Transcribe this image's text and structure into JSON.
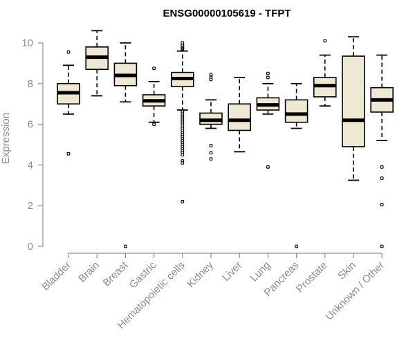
{
  "chart_data": {
    "type": "box",
    "title": "ENSG00000105619 - TFPT",
    "xlabel": "",
    "ylabel": "Expression",
    "ylim": [
      0,
      10.6
    ],
    "yticks": [
      0,
      2,
      4,
      6,
      8,
      10
    ],
    "categories": [
      "Bladder",
      "Brain",
      "Breast",
      "Gastric",
      "Hematopoietic cells",
      "Kidney",
      "Liver",
      "Lung",
      "Pancreas",
      "Prostate",
      "Skin",
      "Unknown / Other"
    ],
    "boxes": [
      {
        "category": "Bladder",
        "whisker_low": 6.5,
        "q1": 7.0,
        "median": 7.55,
        "q3": 8.0,
        "whisker_high": 8.9,
        "outliers": [
          9.55,
          4.55
        ]
      },
      {
        "category": "Brain",
        "whisker_low": 7.4,
        "q1": 8.7,
        "median": 9.3,
        "q3": 9.8,
        "whisker_high": 10.6,
        "outliers": []
      },
      {
        "category": "Breast",
        "whisker_low": 7.1,
        "q1": 7.9,
        "median": 8.4,
        "q3": 9.0,
        "whisker_high": 10.0,
        "outliers": [
          0.0
        ]
      },
      {
        "category": "Gastric",
        "whisker_low": 6.1,
        "q1": 6.9,
        "median": 7.15,
        "q3": 7.45,
        "whisker_high": 8.1,
        "outliers": [
          8.75,
          6.0
        ]
      },
      {
        "category": "Hematopoietic cells",
        "whisker_low": 6.7,
        "q1": 7.85,
        "median": 8.25,
        "q3": 8.55,
        "whisker_high": 9.6,
        "outliers": [
          9.7,
          9.75,
          9.8,
          9.85,
          9.9,
          10.0,
          6.65,
          6.6,
          6.5,
          6.4,
          6.3,
          6.2,
          6.1,
          6.0,
          5.9,
          5.8,
          5.7,
          5.6,
          5.5,
          5.4,
          5.3,
          5.2,
          5.1,
          5.0,
          4.9,
          4.8,
          4.7,
          4.6,
          4.5,
          4.2,
          4.1,
          2.2
        ]
      },
      {
        "category": "Kidney",
        "whisker_low": 5.8,
        "q1": 6.0,
        "median": 6.2,
        "q3": 6.55,
        "whisker_high": 7.2,
        "outliers": [
          8.45,
          8.3,
          8.2,
          4.95,
          4.6,
          4.3
        ]
      },
      {
        "category": "Liver",
        "whisker_low": 4.65,
        "q1": 5.7,
        "median": 6.2,
        "q3": 7.0,
        "whisker_high": 8.3,
        "outliers": []
      },
      {
        "category": "Lung",
        "whisker_low": 6.5,
        "q1": 6.7,
        "median": 6.95,
        "q3": 7.3,
        "whisker_high": 8.0,
        "outliers": [
          8.5,
          8.3,
          3.9
        ]
      },
      {
        "category": "Pancreas",
        "whisker_low": 5.8,
        "q1": 6.1,
        "median": 6.5,
        "q3": 7.2,
        "whisker_high": 8.0,
        "outliers": [
          0.0
        ]
      },
      {
        "category": "Prostate",
        "whisker_low": 6.9,
        "q1": 7.35,
        "median": 7.9,
        "q3": 8.3,
        "whisker_high": 9.4,
        "outliers": [
          10.1
        ]
      },
      {
        "category": "Skin",
        "whisker_low": 3.25,
        "q1": 4.9,
        "median": 6.2,
        "q3": 9.35,
        "whisker_high": 10.3,
        "outliers": []
      },
      {
        "category": "Unknown / Other",
        "whisker_low": 5.2,
        "q1": 6.6,
        "median": 7.2,
        "q3": 7.8,
        "whisker_high": 9.4,
        "outliers": [
          3.9,
          3.35,
          2.05,
          0.0
        ]
      }
    ],
    "box_fill": "#efe8d2",
    "box_stroke": "#000000",
    "axis_color": "#8c8c8c",
    "grid": false,
    "legend": "none"
  }
}
